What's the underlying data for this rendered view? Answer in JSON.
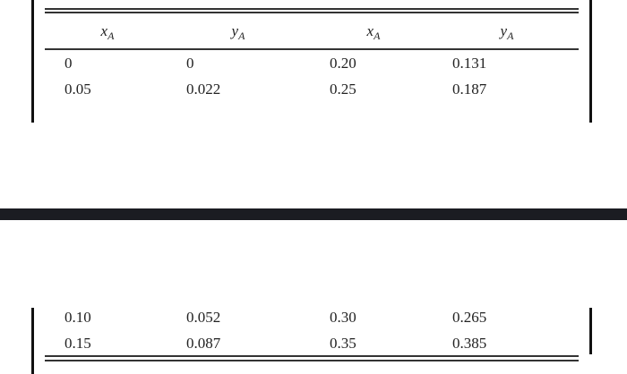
{
  "table": {
    "headers": [
      {
        "symbol": "x",
        "subscript": "A"
      },
      {
        "symbol": "y",
        "subscript": "A"
      },
      {
        "symbol": "x",
        "subscript": "A"
      },
      {
        "symbol": "y",
        "subscript": "A"
      }
    ],
    "rows": [
      [
        "0",
        "0",
        "0.20",
        "0.131"
      ],
      [
        "0.05",
        "0.022",
        "0.25",
        "0.187"
      ],
      [
        "0.10",
        "0.052",
        "0.30",
        "0.265"
      ],
      [
        "0.15",
        "0.087",
        "0.35",
        "0.385"
      ]
    ]
  }
}
